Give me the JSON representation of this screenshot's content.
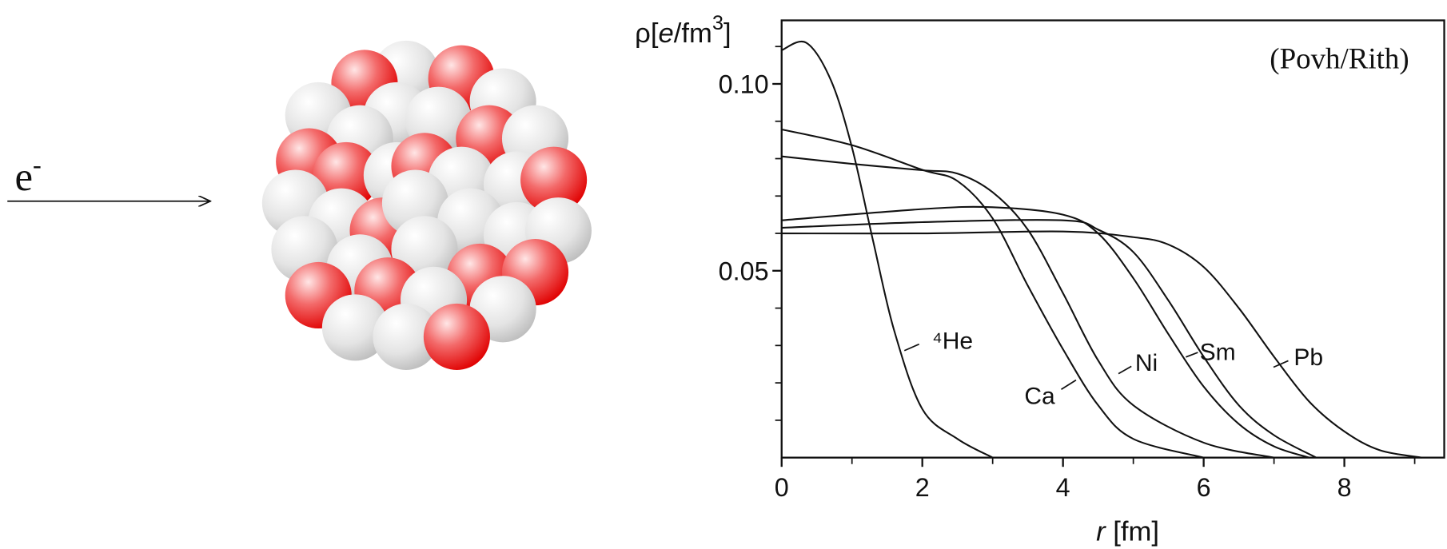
{
  "beam_label": {
    "text": "e",
    "superscript": "-"
  },
  "chart_data": {
    "type": "line",
    "annotation": "(Povh/Rith)",
    "ylabel_parts": [
      "ρ[",
      "e",
      "/fm",
      "3",
      "]"
    ],
    "xlabel_parts": [
      "r",
      " [fm]"
    ],
    "xlim": [
      0,
      9.42
    ],
    "ylim": [
      0,
      0.117
    ],
    "xticks": [
      0,
      2,
      4,
      6,
      8
    ],
    "xminor": [
      1,
      3,
      5,
      7,
      9
    ],
    "yticks": [
      0.05,
      {
        "value": 0.1,
        "label": "0.10"
      }
    ],
    "yminor": [
      0.01,
      0.02,
      0.03,
      0.04,
      0.06,
      0.07,
      0.08,
      0.09,
      0.11
    ],
    "color": "#111111",
    "series": [
      {
        "name": "⁴He",
        "x": [
          0,
          0.35,
          0.7,
          1,
          1.3,
          1.6,
          2,
          2.5,
          3
        ],
        "values": [
          0.109,
          0.111,
          0.101,
          0.083,
          0.058,
          0.034,
          0.013,
          0.005,
          0
        ]
      },
      {
        "name": "Ca",
        "x": [
          0,
          1,
          2,
          2.5,
          3,
          3.5,
          4,
          4.5,
          5,
          6
        ],
        "values": [
          0.0878,
          0.0836,
          0.077,
          0.074,
          0.064,
          0.046,
          0.029,
          0.014,
          0.005,
          0
        ]
      },
      {
        "name": "Ni",
        "x": [
          0,
          1,
          2,
          2.5,
          3,
          3.5,
          4,
          4.5,
          5,
          6,
          7
        ],
        "values": [
          0.0806,
          0.0786,
          0.0769,
          0.076,
          0.071,
          0.061,
          0.044,
          0.026,
          0.014,
          0.004,
          0
        ]
      },
      {
        "x": [
          0,
          2,
          3,
          4,
          4.5,
          5,
          5.5,
          6,
          6.5,
          7,
          7.5
        ],
        "values": [
          0.0635,
          0.0665,
          0.067,
          0.065,
          0.06,
          0.048,
          0.033,
          0.019,
          0.009,
          0.003,
          0
        ]
      },
      {
        "name": "Sm",
        "x": [
          0,
          2,
          4,
          4.5,
          5,
          5.5,
          6,
          6.5,
          7,
          7.6
        ],
        "values": [
          0.0615,
          0.063,
          0.0635,
          0.061,
          0.055,
          0.042,
          0.027,
          0.014,
          0.006,
          0
        ]
      },
      {
        "name": "Pb",
        "x": [
          0,
          2,
          4,
          5,
          5.5,
          6,
          6.5,
          7,
          7.5,
          8,
          8.5,
          9.1
        ],
        "values": [
          0.06,
          0.06,
          0.0605,
          0.059,
          0.057,
          0.051,
          0.04,
          0.027,
          0.015,
          0.007,
          0.002,
          0
        ]
      }
    ]
  }
}
